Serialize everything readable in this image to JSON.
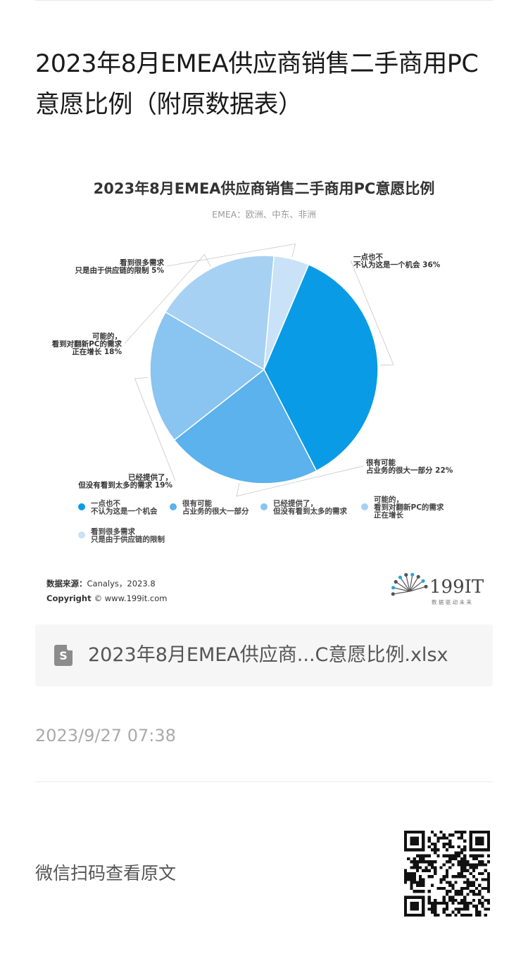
{
  "article": {
    "title": "2023年8月EMEA供应商销售二手商用PC意愿比例（附原数据表）",
    "attachment_name": "2023年8月EMEA供应商...C意愿比例.xlsx",
    "attachment_icon": "spreadsheet-file-icon",
    "attachment_icon_letter": "S",
    "publish_time": "2023/9/27 07:38",
    "qr_label": "微信扫码查看原文"
  },
  "chart_data": {
    "type": "pie",
    "title": "2023年8月EMEA供应商销售二手商用PC意愿比例",
    "subtitle": "EMEA：欧洲、中东、非洲",
    "slices": [
      {
        "label_lines": [
          "一点也不",
          "不认为这是一个机会"
        ],
        "value": 36,
        "value_label": "36%",
        "color": "#0a9be6"
      },
      {
        "label_lines": [
          "很有可能",
          "占业务的很大一部分"
        ],
        "value": 22,
        "value_label": "22%",
        "color": "#5bb2ec"
      },
      {
        "label_lines": [
          "已经提供了，",
          "但没有看到太多的需求"
        ],
        "value": 19,
        "value_label": "19%",
        "color": "#8ac4f0"
      },
      {
        "label_lines": [
          "可能的，",
          "看到对翻新PC的需求",
          "正在增长"
        ],
        "value": 18,
        "value_label": "18%",
        "color": "#a7d1f3"
      },
      {
        "label_lines": [
          "看到很多需求",
          "只是由于供应链的限制"
        ],
        "value": 5,
        "value_label": "5%",
        "color": "#c9e2f7"
      }
    ],
    "legend": {
      "placement": "bottom",
      "items": [
        {
          "lines": [
            "一点也不",
            "不认为这是一个机会"
          ]
        },
        {
          "lines": [
            "很有可能",
            "占业务的很大一部分"
          ]
        },
        {
          "lines": [
            "已经提供了，",
            "但没有看到太多的需求"
          ]
        },
        {
          "lines": [
            "可能的，",
            "看到对翻新PC的需求",
            "正在增长"
          ]
        },
        {
          "lines": [
            "看到很多需求",
            "只是由于供应链的限制"
          ]
        }
      ]
    },
    "source_label": "数据来源：",
    "source_value": "Canalys，2023.8",
    "copyright_label": "Copyright",
    "copyright_value": "© www.199it.com",
    "logo_text": "199IT",
    "logo_tagline": "数 据 驱 动 未 来"
  }
}
